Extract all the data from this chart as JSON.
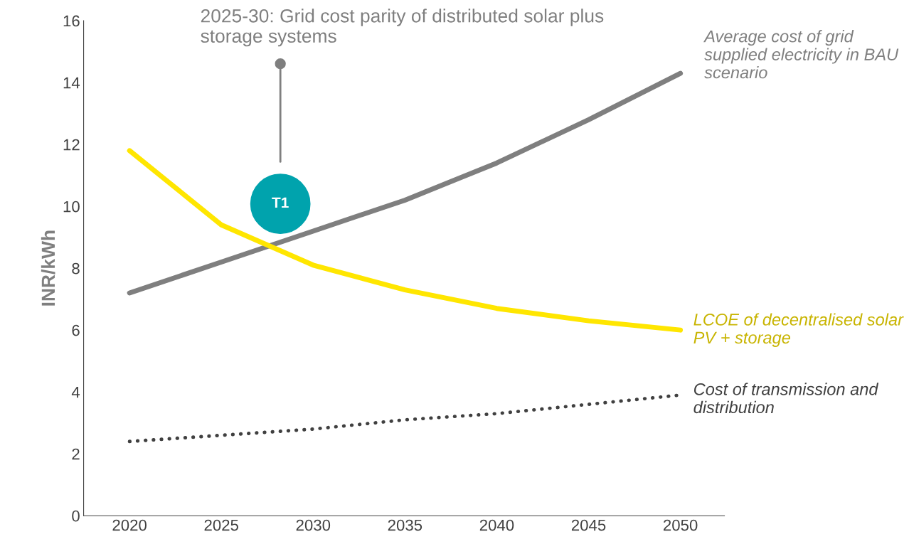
{
  "chart_data": {
    "type": "line",
    "ylabel": "INR/kWh",
    "x": [
      2020,
      2025,
      2030,
      2035,
      2040,
      2045,
      2050
    ],
    "series": [
      {
        "name": "Average cost of grid supplied electricity in BAU scenario",
        "color": "#7f7f7f",
        "line_style": "solid",
        "values": [
          7.2,
          8.2,
          9.2,
          10.2,
          11.4,
          12.8,
          14.3
        ]
      },
      {
        "name": "LCOE of decentralised solar PV + storage",
        "color": "#ffe600",
        "line_style": "solid",
        "values": [
          11.8,
          9.4,
          8.1,
          7.3,
          6.7,
          6.3,
          6.0
        ]
      },
      {
        "name": "Cost of transmission and distribution",
        "color": "#404040",
        "line_style": "dotted",
        "values": [
          2.4,
          2.6,
          2.8,
          3.1,
          3.3,
          3.6,
          3.9
        ]
      }
    ],
    "annotations": [
      "T1",
      "2025-30: Grid cost parity of distributed solar plus storage systems"
    ],
    "xlim": [
      2017.5,
      2052.4
    ],
    "ylim": [
      0,
      16
    ],
    "xticks": [
      2020,
      2025,
      2030,
      2035,
      2040,
      2045,
      2050
    ],
    "yticks": [
      0,
      2,
      4,
      6,
      8,
      10,
      12,
      14,
      16
    ],
    "grid": false,
    "legend": false,
    "marker": "none"
  }
}
